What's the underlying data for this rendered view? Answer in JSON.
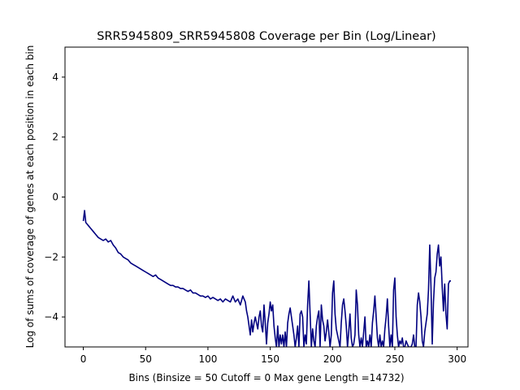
{
  "chart_data": {
    "type": "line",
    "title": "SRR5945809_SRR5945808 Coverage per Bin (Log/Linear)",
    "xlabel": "Bins  (Binsize = 50 Cutoff = 0 Max gene Length =14732)",
    "ylabel": "Log of sums of coverage of genes at each position in each bin",
    "xlim": [
      -14.7,
      308.7
    ],
    "ylim": [
      -5,
      5
    ],
    "xticks": [
      0,
      50,
      100,
      150,
      200,
      250,
      300
    ],
    "yticks": [
      -4,
      -2,
      0,
      2,
      4
    ],
    "grid": false,
    "line_color": "#000080",
    "series": [
      {
        "x": [
          0,
          1,
          2,
          3,
          4,
          6,
          8,
          10,
          12,
          14,
          16,
          18,
          20,
          22,
          24,
          26,
          28,
          30,
          32,
          34,
          36,
          38,
          40,
          42,
          44,
          46,
          48,
          50,
          52,
          54,
          56,
          58,
          60,
          62,
          64,
          66,
          68,
          70,
          72,
          74,
          76,
          78,
          80,
          82,
          84,
          86,
          88,
          90,
          92,
          94,
          96,
          98,
          100,
          102,
          104,
          106,
          108,
          110,
          112,
          114,
          116,
          118,
          120,
          122,
          124,
          126,
          128,
          130,
          131,
          132,
          133,
          134,
          135,
          136,
          137,
          138,
          139,
          140,
          141,
          142,
          143,
          144,
          145,
          146,
          147,
          148,
          149,
          150,
          151,
          152,
          153,
          154,
          155,
          156,
          157,
          158,
          159,
          160,
          161,
          162,
          163,
          164,
          165,
          166,
          167,
          168,
          169,
          170,
          171,
          172,
          173,
          174,
          175,
          176,
          177,
          178,
          179,
          180,
          181,
          182,
          183,
          184,
          185,
          186,
          187,
          188,
          189,
          190,
          191,
          192,
          193,
          194,
          195,
          196,
          197,
          198,
          199,
          200,
          201,
          202,
          203,
          204,
          205,
          206,
          207,
          208,
          209,
          210,
          211,
          212,
          213,
          214,
          215,
          216,
          217,
          218,
          219,
          220,
          221,
          222,
          223,
          224,
          225,
          226,
          227,
          228,
          229,
          230,
          231,
          232,
          233,
          234,
          235,
          236,
          237,
          238,
          239,
          240,
          241,
          242,
          243,
          244,
          245,
          246,
          247,
          248,
          249,
          250,
          251,
          252,
          253,
          254,
          255,
          256,
          257,
          258,
          259,
          260,
          261,
          262,
          263,
          264,
          265,
          266,
          267,
          268,
          269,
          270,
          271,
          272,
          273,
          274,
          275,
          276,
          277,
          278,
          279,
          280,
          281,
          282,
          283,
          284,
          285,
          286,
          287,
          288,
          289,
          290,
          291,
          292,
          293,
          294,
          295
        ],
        "y": [
          -0.8,
          -0.45,
          -0.85,
          -0.9,
          -0.95,
          -1.05,
          -1.15,
          -1.25,
          -1.35,
          -1.4,
          -1.45,
          -1.4,
          -1.5,
          -1.45,
          -1.6,
          -1.7,
          -1.85,
          -1.9,
          -2.0,
          -2.05,
          -2.1,
          -2.2,
          -2.25,
          -2.3,
          -2.35,
          -2.4,
          -2.45,
          -2.5,
          -2.55,
          -2.6,
          -2.65,
          -2.6,
          -2.7,
          -2.75,
          -2.8,
          -2.85,
          -2.9,
          -2.95,
          -2.95,
          -3.0,
          -3.0,
          -3.05,
          -3.05,
          -3.1,
          -3.15,
          -3.1,
          -3.2,
          -3.2,
          -3.25,
          -3.3,
          -3.3,
          -3.35,
          -3.3,
          -3.4,
          -3.35,
          -3.4,
          -3.45,
          -3.4,
          -3.5,
          -3.4,
          -3.45,
          -3.5,
          -3.3,
          -3.5,
          -3.4,
          -3.6,
          -3.3,
          -3.5,
          -3.8,
          -4.0,
          -4.3,
          -4.6,
          -4.1,
          -4.5,
          -4.2,
          -4.0,
          -4.2,
          -4.4,
          -4.0,
          -3.8,
          -4.3,
          -4.5,
          -3.6,
          -4.2,
          -4.9,
          -4.2,
          -3.9,
          -3.5,
          -3.8,
          -3.6,
          -4.3,
          -4.7,
          -5.0,
          -4.3,
          -5.0,
          -4.6,
          -4.9,
          -4.6,
          -5.0,
          -4.5,
          -5.0,
          -4.2,
          -3.9,
          -3.7,
          -4.0,
          -4.3,
          -4.6,
          -5.0,
          -4.7,
          -4.3,
          -5.0,
          -3.9,
          -3.8,
          -4.0,
          -5.0,
          -4.6,
          -4.9,
          -3.6,
          -2.8,
          -3.9,
          -5.0,
          -4.4,
          -4.8,
          -5.0,
          -4.3,
          -4.0,
          -3.8,
          -5.0,
          -3.6,
          -4.1,
          -4.3,
          -4.8,
          -4.5,
          -4.1,
          -4.5,
          -5.0,
          -4.6,
          -3.2,
          -2.8,
          -3.9,
          -4.4,
          -4.6,
          -4.8,
          -5.0,
          -4.2,
          -3.6,
          -3.4,
          -3.8,
          -4.3,
          -5.0,
          -4.5,
          -3.9,
          -4.7,
          -5.0,
          -4.9,
          -4.6,
          -3.1,
          -3.6,
          -4.6,
          -5.0,
          -4.7,
          -5.0,
          -4.5,
          -4.0,
          -5.0,
          -4.8,
          -5.0,
          -4.6,
          -5.0,
          -4.2,
          -3.8,
          -3.3,
          -4.0,
          -4.7,
          -5.0,
          -4.6,
          -5.0,
          -4.8,
          -5.0,
          -4.4,
          -4.0,
          -3.4,
          -4.3,
          -5.0,
          -4.6,
          -5.0,
          -3.1,
          -2.7,
          -4.0,
          -4.6,
          -5.0,
          -4.8,
          -4.9,
          -4.7,
          -5.0,
          -5.0,
          -4.8,
          -4.9,
          -5.0,
          -5.0,
          -5.0,
          -4.9,
          -4.6,
          -5.0,
          -5.0,
          -3.6,
          -3.2,
          -3.5,
          -4.0,
          -4.8,
          -5.0,
          -4.5,
          -4.2,
          -3.9,
          -3.1,
          -1.6,
          -3.0,
          -4.9,
          -3.5,
          -2.7,
          -2.5,
          -1.9,
          -1.6,
          -2.3,
          -2.0,
          -3.0,
          -3.8,
          -2.9,
          -3.9,
          -4.4,
          -2.9,
          -2.8,
          -2.8
        ]
      }
    ]
  }
}
